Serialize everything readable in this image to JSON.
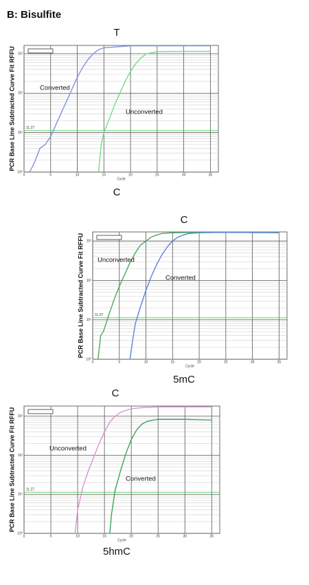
{
  "title": "B: Bisulfite",
  "chart_data": [
    {
      "type": "line",
      "title": "T",
      "caption": "C",
      "ylabel": "PCR Base Line Subtracted Curve Fit RFFU",
      "xlabel": "Cycle",
      "yscale": "log",
      "grid": true,
      "threshold": 11.27,
      "xlim": [
        0,
        36.5
      ],
      "xticks": [
        0,
        5,
        10,
        15,
        20,
        25,
        30,
        35
      ],
      "ylim": [
        1,
        1620
      ],
      "yticks": [
        {
          "value": 1,
          "label": "10⁰"
        },
        {
          "value": 10,
          "label": "10¹"
        },
        {
          "value": 100,
          "label": "10²"
        },
        {
          "value": 1000,
          "label": "10³"
        }
      ],
      "series": [
        {
          "name": "Converted",
          "color": "#7d92dc",
          "x": [
            1,
            1.5,
            2,
            3,
            4,
            5,
            6,
            7,
            8,
            9,
            10,
            11,
            12,
            13,
            14,
            15,
            20,
            35
          ],
          "values": [
            1,
            1.3,
            1.8,
            4,
            5,
            8,
            16,
            32,
            63,
            126,
            251,
            447,
            708,
            1000,
            1259,
            1413,
            1585,
            1585
          ]
        },
        {
          "name": "Unconverted",
          "color": "#72dc8c",
          "x": [
            14,
            14.5,
            15,
            16,
            17,
            18,
            19,
            20,
            21,
            22,
            23,
            25,
            30,
            35
          ],
          "values": [
            1,
            5,
            10,
            22,
            50,
            100,
            200,
            355,
            562,
            794,
            1000,
            1122,
            1148,
            1148
          ]
        }
      ]
    },
    {
      "type": "line",
      "title": "C",
      "caption": "5mC",
      "ylabel": "PCR Base Line Subtracted Curve Fit RFFU",
      "xlabel": "Cycle",
      "yscale": "log",
      "grid": true,
      "threshold": 11.27,
      "xlim": [
        0,
        36.5
      ],
      "xticks": [
        0,
        5,
        10,
        15,
        20,
        25,
        30,
        35
      ],
      "ylim": [
        1,
        1700
      ],
      "yticks": [
        {
          "value": 1,
          "label": "10⁰"
        },
        {
          "value": 10,
          "label": "10¹"
        },
        {
          "value": 100,
          "label": "10²"
        },
        {
          "value": 1000,
          "label": "10³"
        }
      ],
      "series": [
        {
          "name": "Unconverted",
          "color": "#4aa85a",
          "x": [
            1,
            1.5,
            2,
            3,
            4,
            5,
            6,
            7,
            8,
            9,
            10,
            11,
            12,
            13,
            15,
            20,
            35
          ],
          "values": [
            1,
            4,
            5,
            13,
            32,
            71,
            141,
            282,
            501,
            794,
            1000,
            1259,
            1413,
            1549,
            1622,
            1660,
            1660
          ]
        },
        {
          "name": "Converted",
          "color": "#5b80d8",
          "x": [
            7,
            7.5,
            8,
            9,
            10,
            11,
            12,
            13,
            14,
            15,
            16,
            17,
            18,
            20,
            25,
            35
          ],
          "values": [
            1,
            3,
            8,
            22,
            56,
            126,
            251,
            447,
            708,
            1000,
            1259,
            1413,
            1549,
            1622,
            1660,
            1622
          ]
        }
      ]
    },
    {
      "type": "line",
      "title": "C",
      "caption": "5hmC",
      "ylabel": "PCR Base Line Subtracted Curve Fit RFFU",
      "xlabel": "Cycle",
      "yscale": "log",
      "grid": true,
      "threshold": 11.27,
      "xlim": [
        0,
        36.5
      ],
      "xticks": [
        0,
        5,
        10,
        15,
        20,
        25,
        30,
        35
      ],
      "ylim": [
        1,
        1820
      ],
      "yticks": [
        {
          "value": 1,
          "label": "10⁰"
        },
        {
          "value": 10,
          "label": "10¹"
        },
        {
          "value": 100,
          "label": "10²"
        },
        {
          "value": 1000,
          "label": "10³"
        }
      ],
      "series": [
        {
          "name": "Unconverted",
          "color": "#dc92d4",
          "x": [
            9.5,
            10,
            11,
            12,
            13,
            14,
            15,
            16,
            17,
            18,
            19,
            20,
            22,
            25,
            35
          ],
          "values": [
            1,
            4,
            16,
            40,
            89,
            200,
            398,
            708,
            1000,
            1259,
            1413,
            1549,
            1660,
            1738,
            1738
          ]
        },
        {
          "name": "Converted",
          "color": "#3aa45a",
          "x": [
            16,
            16.3,
            17,
            18,
            19,
            20,
            21,
            22,
            23,
            24,
            25,
            30,
            35
          ],
          "values": [
            1,
            3,
            13,
            40,
            112,
            251,
            447,
            631,
            741,
            794,
            832,
            832,
            794
          ]
        }
      ]
    }
  ]
}
